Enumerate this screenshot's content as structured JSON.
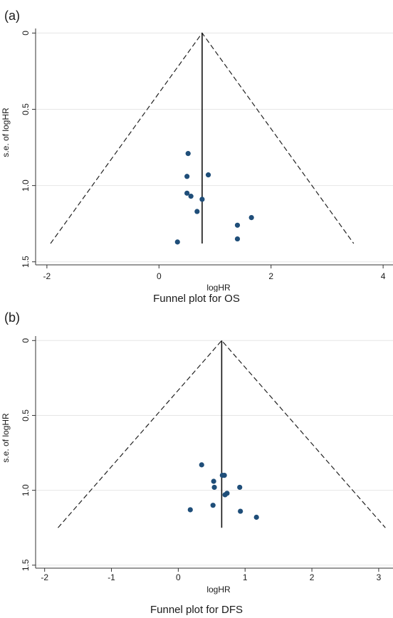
{
  "panels": [
    {
      "label": "(a)",
      "caption": "Funnel plot for OS"
    },
    {
      "label": "(b)",
      "caption": "Funnel plot for DFS"
    }
  ],
  "chart_data": [
    {
      "type": "scatter",
      "title": "Funnel plot for OS",
      "xlabel": "logHR",
      "ylabel": "s.e. of logHR",
      "xlim": [
        -2.1,
        4.1
      ],
      "ylim": [
        1.52,
        -0.03
      ],
      "y_inverted": true,
      "x_ticks": [
        "-2",
        "0",
        "2",
        "4"
      ],
      "x_tick_values": [
        -2,
        0,
        2,
        4
      ],
      "y_ticks": [
        "0",
        "0.5",
        "1.0",
        "1.5"
      ],
      "y_tick_values": [
        0,
        0.5,
        1.0,
        1.5
      ],
      "grid": true,
      "pooled_logHR": 0.77,
      "funnel_max_se": 1.38,
      "points": [
        {
          "x": 0.52,
          "y": 0.79
        },
        {
          "x": 0.5,
          "y": 0.94
        },
        {
          "x": 0.88,
          "y": 0.93
        },
        {
          "x": 0.5,
          "y": 1.05
        },
        {
          "x": 0.57,
          "y": 1.07
        },
        {
          "x": 0.77,
          "y": 1.09
        },
        {
          "x": 0.68,
          "y": 1.17
        },
        {
          "x": 1.65,
          "y": 1.21
        },
        {
          "x": 1.4,
          "y": 1.26
        },
        {
          "x": 1.4,
          "y": 1.35
        },
        {
          "x": 0.33,
          "y": 1.37
        }
      ],
      "point_color": "#1f4e79"
    },
    {
      "type": "scatter",
      "title": "Funnel plot for DFS",
      "xlabel": "logHR",
      "ylabel": "s.e. of logHR",
      "xlim": [
        -2.05,
        3.15
      ],
      "ylim": [
        1.52,
        -0.03
      ],
      "y_inverted": true,
      "x_ticks": [
        "-2",
        "-1",
        "0",
        "1",
        "2",
        "3"
      ],
      "x_tick_values": [
        -2,
        -1,
        0,
        1,
        2,
        3
      ],
      "y_ticks": [
        "0",
        "0.5",
        "1.0",
        "1.5"
      ],
      "y_tick_values": [
        0,
        0.5,
        1.0,
        1.5
      ],
      "grid": true,
      "pooled_logHR": 0.65,
      "funnel_max_se": 1.25,
      "points": [
        {
          "x": 0.35,
          "y": 0.83
        },
        {
          "x": 0.66,
          "y": 0.9
        },
        {
          "x": 0.69,
          "y": 0.9
        },
        {
          "x": 0.53,
          "y": 0.94
        },
        {
          "x": 0.54,
          "y": 0.98
        },
        {
          "x": 0.92,
          "y": 0.98
        },
        {
          "x": 0.73,
          "y": 1.02
        },
        {
          "x": 0.7,
          "y": 1.03
        },
        {
          "x": 0.52,
          "y": 1.1
        },
        {
          "x": 0.18,
          "y": 1.13
        },
        {
          "x": 0.93,
          "y": 1.14
        },
        {
          "x": 1.17,
          "y": 1.18
        }
      ],
      "point_color": "#1f4e79"
    }
  ]
}
